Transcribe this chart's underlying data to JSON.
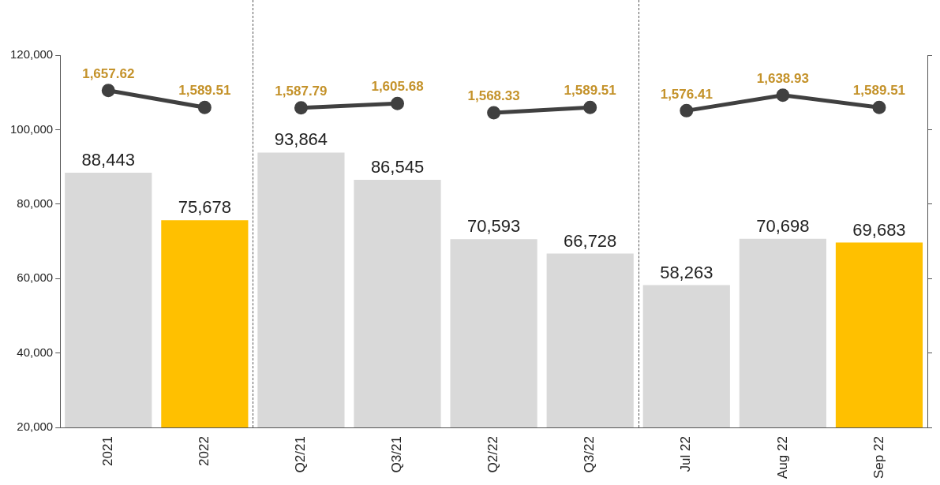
{
  "chart_data": {
    "type": "bar",
    "categories": [
      "2021",
      "2022",
      "Q2/21",
      "Q3/21",
      "Q2/22",
      "Q3/22",
      "Jul 22",
      "Aug 22",
      "Sep 22"
    ],
    "series": [
      {
        "colors": [
          "#d9d9d9",
          "#ffc000",
          "#d9d9d9",
          "#d9d9d9",
          "#d9d9d9",
          "#d9d9d9",
          "#d9d9d9",
          "#d9d9d9",
          "#ffc000"
        ],
        "values": [
          88443,
          75678,
          93864,
          86545,
          70593,
          66728,
          58263,
          70698,
          69683
        ],
        "value_labels": [
          "88,443",
          "75,678",
          "93,864",
          "86,545",
          "70,593",
          "66,728",
          "58,263",
          "70,698",
          "69,683"
        ]
      },
      {
        "type": "line",
        "axis": "y2",
        "color": "#404040",
        "values": [
          1657.62,
          1589.51,
          null,
          null,
          null,
          null,
          null,
          null,
          null
        ],
        "value_labels": [
          "1,657.62",
          "1,589.51",
          null,
          null,
          null,
          null,
          null,
          null,
          null
        ]
      },
      {
        "type": "line",
        "axis": "y2",
        "color": "#404040",
        "values": [
          null,
          null,
          1587.79,
          1605.68,
          null,
          null,
          null,
          null,
          null
        ],
        "value_labels": [
          null,
          null,
          "1,587.79",
          "1,605.68",
          null,
          null,
          null,
          null,
          null
        ]
      },
      {
        "type": "line",
        "axis": "y2",
        "color": "#404040",
        "values": [
          null,
          null,
          null,
          null,
          1568.33,
          1589.51,
          null,
          null,
          null
        ],
        "value_labels": [
          null,
          null,
          null,
          null,
          "1,568.33",
          "1,589.51",
          null,
          null,
          null
        ]
      },
      {
        "type": "line",
        "axis": "y2",
        "color": "#404040",
        "values": [
          null,
          null,
          null,
          null,
          null,
          null,
          1576.41,
          1638.93,
          1589.51
        ],
        "value_labels": [
          null,
          null,
          null,
          null,
          null,
          null,
          "1,576.41",
          "1,638.93",
          "1,589.51"
        ]
      }
    ],
    "ylim": [
      20000,
      120000
    ],
    "yticks": [
      {
        "value": 20000,
        "label": "20,000"
      },
      {
        "value": 40000,
        "label": "40,000"
      },
      {
        "value": 60000,
        "label": "60,000"
      },
      {
        "value": 80000,
        "label": "80,000"
      },
      {
        "value": 100000,
        "label": "100,000"
      },
      {
        "value": 120000,
        "label": "120,000"
      }
    ],
    "y2lim": [
      300,
      1800
    ],
    "y2ticks": [
      {
        "value": 300,
        "label": null
      },
      {
        "value": 600,
        "label": null
      },
      {
        "value": 900,
        "label": null
      },
      {
        "value": 1200,
        "label": null
      },
      {
        "value": 1500,
        "label": null
      },
      {
        "value": 1800,
        "label": null
      }
    ],
    "marker": "circle",
    "grid": false,
    "legend": false
  }
}
